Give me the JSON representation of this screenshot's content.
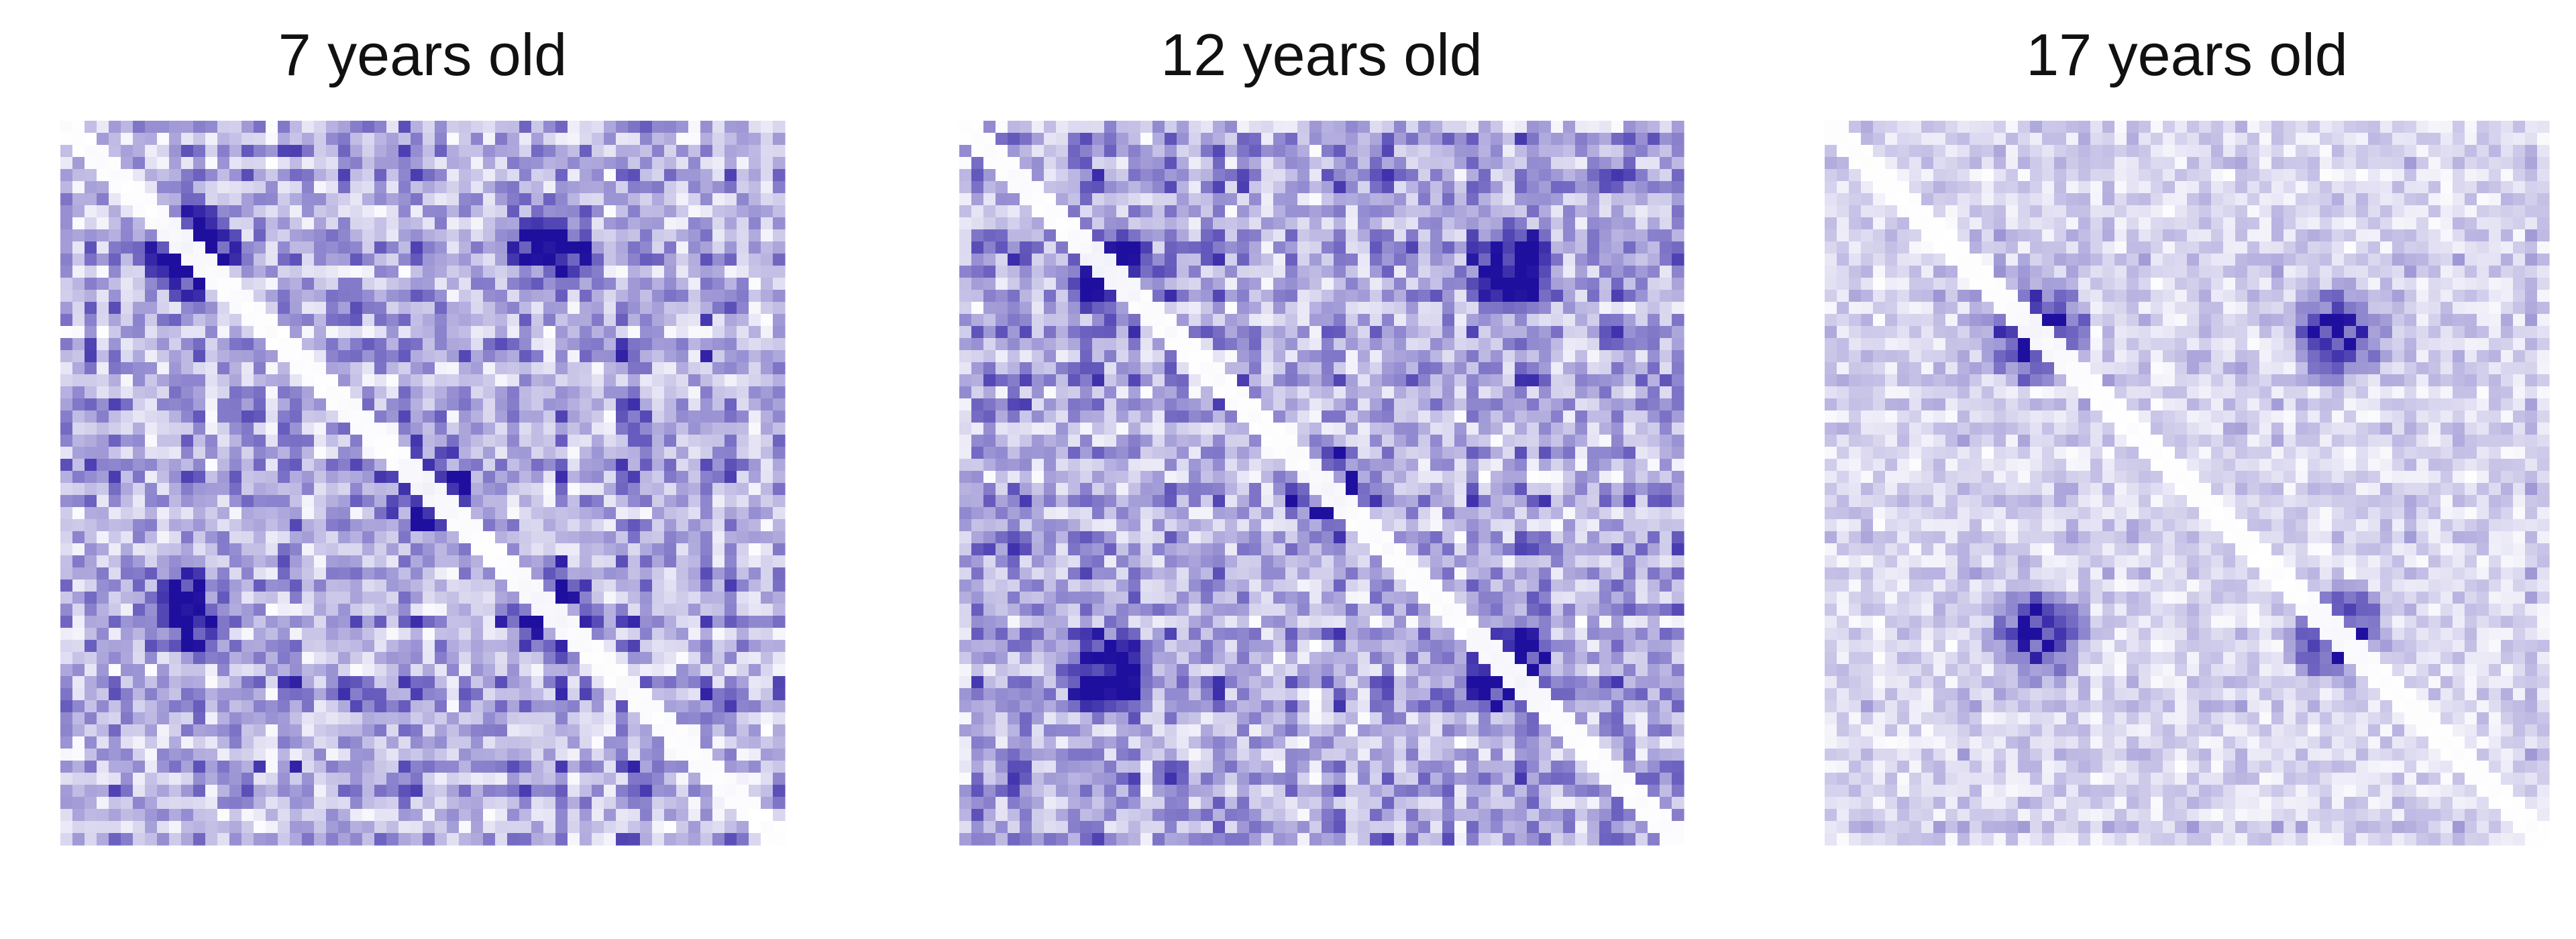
{
  "chart_data": [
    {
      "type": "heatmap",
      "title": "7 years old",
      "matrix_size": 60,
      "symmetric": true,
      "diagonal": "near-zero",
      "value_range": [
        0,
        1
      ],
      "colormap": {
        "low": "#ffffff",
        "high": "#1f0f9e"
      },
      "density": "high",
      "strong_blocks": [
        [
          10,
          10
        ],
        [
          10,
          40
        ],
        [
          40,
          10
        ],
        [
          40,
          40
        ],
        [
          30,
          30
        ]
      ],
      "axes_visible": false,
      "grid": false
    },
    {
      "type": "heatmap",
      "title": "12 years old",
      "matrix_size": 60,
      "symmetric": true,
      "diagonal": "near-zero",
      "value_range": [
        0,
        1
      ],
      "colormap": {
        "low": "#ffffff",
        "high": "#1f0f9e"
      },
      "density": "high",
      "strong_blocks": [
        [
          12,
          12
        ],
        [
          12,
          45
        ],
        [
          45,
          12
        ],
        [
          45,
          45
        ],
        [
          30,
          30
        ]
      ],
      "axes_visible": false,
      "grid": false
    },
    {
      "type": "heatmap",
      "title": "17 years old",
      "matrix_size": 60,
      "symmetric": true,
      "diagonal": "near-zero",
      "value_range": [
        0,
        1
      ],
      "colormap": {
        "low": "#ffffff",
        "high": "#1f0f9e"
      },
      "density": "low",
      "strong_blocks": [
        [
          17,
          17
        ],
        [
          17,
          42
        ],
        [
          42,
          17
        ],
        [
          42,
          42
        ]
      ],
      "axes_visible": false,
      "grid": false
    }
  ]
}
